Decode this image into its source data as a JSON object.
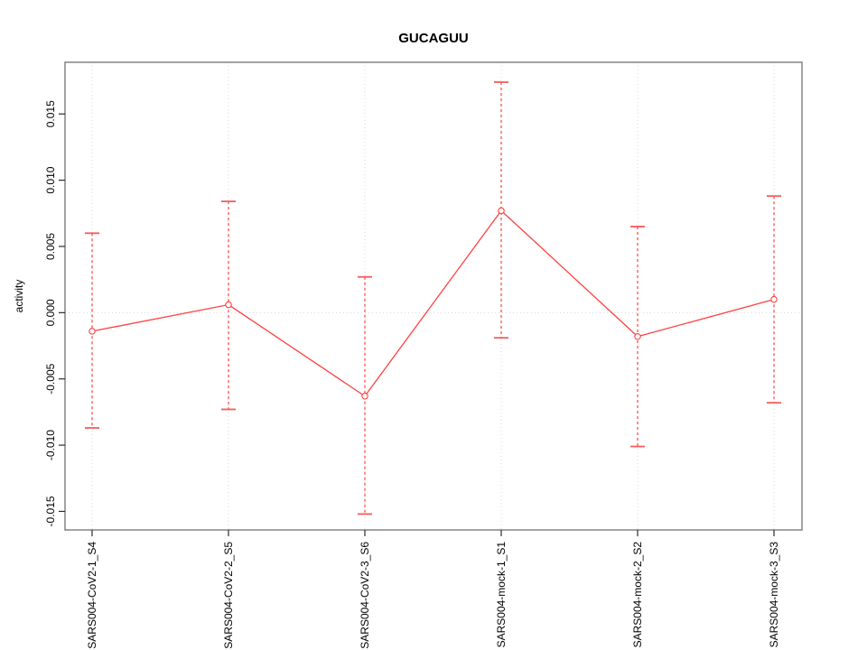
{
  "title": "GUCAGUU",
  "chart_data": {
    "type": "line",
    "title": "GUCAGUU",
    "xlabel": "",
    "ylabel": "activity",
    "categories": [
      "SARS004-CoV2-1_S4",
      "SARS004-CoV2-2_S5",
      "SARS004-CoV2-3_S6",
      "SARS004-mock-1_S1",
      "SARS004-mock-2_S2",
      "SARS004-mock-3_S3"
    ],
    "series": [
      {
        "name": "activity",
        "values": [
          -0.0014,
          0.0006,
          -0.0063,
          0.0077,
          -0.0018,
          0.001
        ],
        "error_upper": [
          0.006,
          0.0084,
          0.0027,
          0.0174,
          0.0065,
          0.0088
        ],
        "error_lower": [
          -0.0087,
          -0.0073,
          -0.0152,
          -0.0019,
          -0.0101,
          -0.0068
        ]
      }
    ],
    "ylim": [
      -0.0164,
      0.0189
    ],
    "yticks": [
      -0.015,
      -0.01,
      -0.005,
      0,
      0.005,
      0.01,
      0.015
    ],
    "ytick_labels": [
      "-0.015",
      "-0.010",
      "-0.005",
      "0.000",
      "0.005",
      "0.010",
      "0.015"
    ],
    "legend_position": "none",
    "grid": {
      "vertical_at_categories": "dotted",
      "horizontal_at_zero": "dotted"
    },
    "marker": "open-circle",
    "colors": {
      "series": "#ff4040",
      "cap": "#f55b5b",
      "grid": "#d8d8d8",
      "box": "#8a8a8a",
      "tick": "#2b2b2b",
      "text": "#000000"
    }
  }
}
